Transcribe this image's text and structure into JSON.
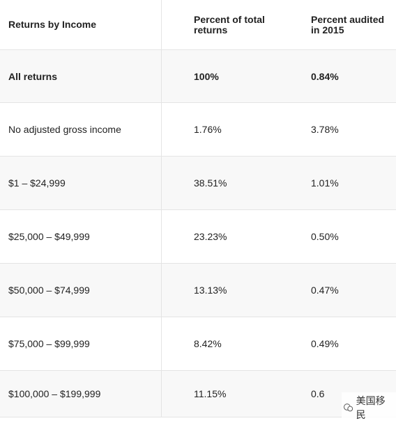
{
  "table": {
    "header": [
      "Returns by Income",
      "Percent of total returns",
      "Percent audited in 2015"
    ],
    "rows": [
      [
        "All returns",
        "100%",
        "0.84%"
      ],
      [
        "No adjusted gross income",
        "1.76%",
        "3.78%"
      ],
      [
        "$1 – $24,999",
        "38.51%",
        "1.01%"
      ],
      [
        "$25,000 – $49,999",
        "23.23%",
        "0.50%"
      ],
      [
        "$50,000 – $74,999",
        "13.13%",
        "0.47%"
      ],
      [
        "$75,000 – $99,999",
        "8.42%",
        "0.49%"
      ],
      [
        "$100,000 – $199,999",
        "11.15%",
        "0.6"
      ]
    ]
  },
  "watermark": "美国移民"
}
